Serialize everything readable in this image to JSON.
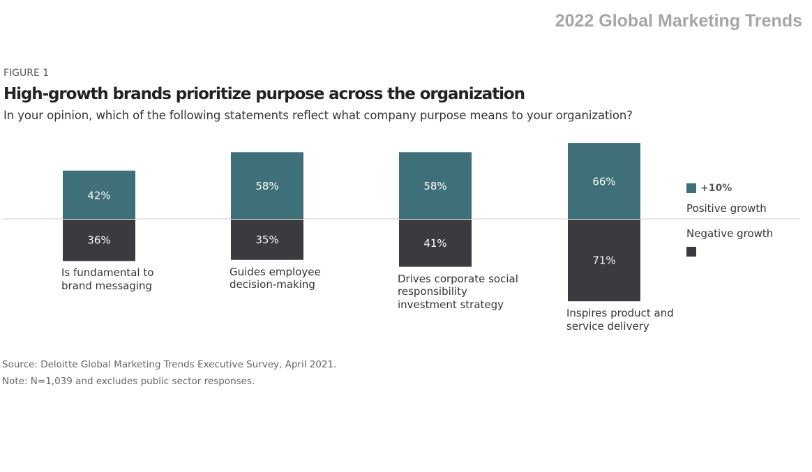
{
  "header": {
    "brand_title": "2022 Global Marketing Trends"
  },
  "figure": {
    "label": "FIGURE 1",
    "title": "High-growth brands prioritize purpose across the organization",
    "subtitle": "In your opinion, which of the following statements reflect what company purpose means to your organization?"
  },
  "legend": {
    "positive_value": "+10%",
    "positive_label": "Positive growth",
    "negative_label": "Negative growth"
  },
  "colors": {
    "positive": "#3f6f78",
    "negative": "#3a3a3f",
    "baseline": "#cccccc",
    "bar_text": "#ffffff"
  },
  "chart_data": {
    "type": "bar",
    "categories": [
      "Is fundamental to brand messaging",
      "Guides employee decision-making",
      "Drives corporate social responsibility investment strategy",
      "Inspires product and service delivery"
    ],
    "category_lines": [
      [
        "Is fundamental to",
        "brand messaging"
      ],
      [
        "Guides employee",
        "decision-making"
      ],
      [
        "Drives corporate social",
        "responsibility",
        "investment strategy"
      ],
      [
        "Inspires product and",
        "service delivery"
      ]
    ],
    "series": [
      {
        "name": "+10% Positive growth",
        "values": [
          42,
          58,
          58,
          66
        ]
      },
      {
        "name": "Negative growth",
        "values": [
          36,
          35,
          41,
          71
        ]
      }
    ],
    "value_labels": {
      "positive": [
        "42%",
        "58%",
        "58%",
        "66%"
      ],
      "negative": [
        "36%",
        "35%",
        "41%",
        "71%"
      ]
    },
    "unit": "%",
    "layout": "diverging-stacked"
  },
  "footnotes": {
    "source": "Source: Deloitte Global Marketing Trends Executive Survey, April 2021.",
    "note": "Note: N=1,039 and excludes public sector responses."
  }
}
